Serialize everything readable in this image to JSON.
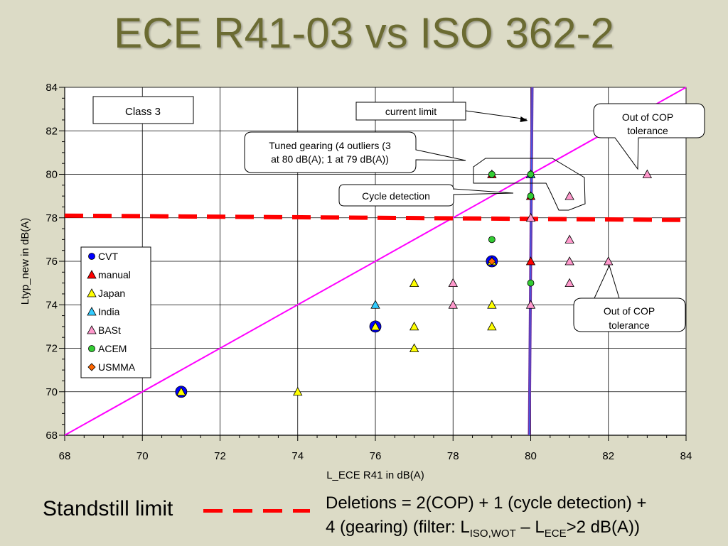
{
  "slide": {
    "title": "ECE R41-03 vs ISO 362-2",
    "standstill_label": "Standstill limit",
    "deletions": {
      "t1": "Deletions = 2(COP) + 1 (cycle detection) +",
      "t2": "4 (gearing) (filter: L",
      "sub1": "ISO,WOT",
      "t3": " – L",
      "sub2": "ECE",
      "t4": ">2 dB(A))"
    }
  },
  "chart_data": {
    "type": "scatter",
    "xlabel": "L_ECE R41 in dB(A)",
    "ylabel": "Ltyp_new in dB(A)",
    "xlim": [
      68,
      84
    ],
    "ylim": [
      68,
      84
    ],
    "xticks": [
      "68",
      "70",
      "72",
      "74",
      "76",
      "78",
      "80",
      "82",
      "84"
    ],
    "yticks": [
      "68",
      "70",
      "72",
      "74",
      "76",
      "78",
      "80",
      "82",
      "84"
    ],
    "grid": true,
    "legend_position": "left",
    "series": [
      {
        "name": "CVT",
        "marker": "circle",
        "color": "#0000ff",
        "size": "large",
        "points": [
          [
            71,
            70
          ],
          [
            76,
            73
          ],
          [
            79,
            76
          ]
        ]
      },
      {
        "name": "manual",
        "marker": "triangle",
        "color": "#ff0000",
        "points": [
          [
            79,
            80
          ],
          [
            80,
            80
          ],
          [
            80,
            79
          ],
          [
            80,
            76
          ]
        ]
      },
      {
        "name": "Japan",
        "marker": "triangle",
        "color": "#ffff00",
        "points": [
          [
            71,
            70
          ],
          [
            74,
            70
          ],
          [
            76,
            73
          ],
          [
            77,
            75
          ],
          [
            77,
            73
          ],
          [
            77,
            72
          ],
          [
            79,
            76
          ],
          [
            79,
            74
          ],
          [
            79,
            73
          ]
        ]
      },
      {
        "name": "India",
        "marker": "triangle",
        "color": "#33ccff",
        "points": [
          [
            76,
            74
          ],
          [
            80,
            80
          ]
        ]
      },
      {
        "name": "BASt",
        "marker": "triangle",
        "color": "#ff99cc",
        "points": [
          [
            78,
            75
          ],
          [
            78,
            74
          ],
          [
            80,
            78
          ],
          [
            80,
            74
          ],
          [
            81,
            79
          ],
          [
            81,
            77
          ],
          [
            81,
            76
          ],
          [
            81,
            75
          ],
          [
            82,
            76
          ],
          [
            83,
            80
          ]
        ]
      },
      {
        "name": "ACEM",
        "marker": "circle",
        "color": "#33cc33",
        "points": [
          [
            79,
            80
          ],
          [
            79,
            77
          ],
          [
            80,
            80
          ],
          [
            80,
            79
          ],
          [
            80,
            75
          ]
        ]
      },
      {
        "name": "USMMA",
        "marker": "diamond",
        "color": "#ff6600",
        "points": [
          [
            79,
            76
          ]
        ]
      }
    ],
    "reference_lines": [
      {
        "kind": "diagonal",
        "color": "#ff00ff",
        "from": [
          68,
          68
        ],
        "to": [
          84,
          84
        ]
      },
      {
        "kind": "dashed",
        "color": "#ff0000",
        "from": [
          68,
          78.1
        ],
        "to": [
          84,
          77.9
        ],
        "name": "Standstill limit"
      },
      {
        "kind": "vertical",
        "color": "#7030a0",
        "x": 80
      }
    ],
    "annotations": {
      "class3": "Class 3",
      "current_limit": "current limit",
      "tuned_gearing_1": "Tuned gearing (4 outliers (3",
      "tuned_gearing_2": "at 80 dB(A); 1 at 79 dB(A))",
      "cycle_detection": "Cycle detection",
      "cop1_1": "Out of COP",
      "cop1_2": "tolerance",
      "cop2_1": "Out of COP",
      "cop2_2": "tolerance"
    }
  }
}
